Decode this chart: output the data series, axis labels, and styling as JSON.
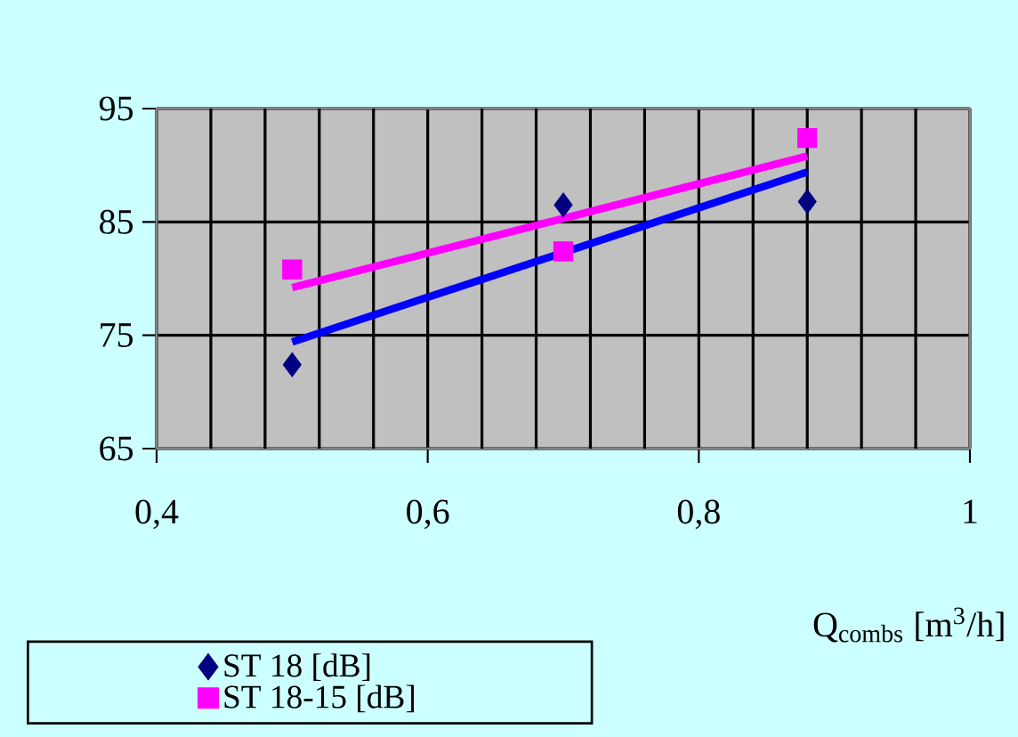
{
  "chart_data": {
    "type": "scatter",
    "xlabel": "Q$_{combs}$ [m$^{3}$/h]",
    "xlim": [
      0.4,
      1
    ],
    "ylim": [
      65,
      95
    ],
    "xticks": [
      {
        "value": 0.4,
        "label": "0,4"
      },
      {
        "value": 0.44,
        "label": null
      },
      {
        "value": 0.48,
        "label": null
      },
      {
        "value": 0.52,
        "label": null
      },
      {
        "value": 0.56,
        "label": null
      },
      {
        "value": 0.6,
        "label": "0,6"
      },
      {
        "value": 0.64,
        "label": null
      },
      {
        "value": 0.68,
        "label": null
      },
      {
        "value": 0.72,
        "label": null
      },
      {
        "value": 0.76,
        "label": null
      },
      {
        "value": 0.8,
        "label": "0,8"
      },
      {
        "value": 0.84,
        "label": null
      },
      {
        "value": 0.88,
        "label": null
      },
      {
        "value": 0.92,
        "label": null
      },
      {
        "value": 0.96,
        "label": null
      },
      1
    ],
    "yticks": [
      65,
      75,
      85,
      95
    ],
    "grid": true,
    "legend": "bottom left",
    "series": [
      {
        "name": "ST 18 [dB]",
        "marker": "diamond",
        "color": "#000080",
        "x": [
          0.5,
          0.7,
          0.88
        ],
        "values": [
          72.4,
          86.5,
          86.8
        ]
      },
      {
        "name": "ST 18-15 [dB]",
        "marker": "square",
        "color": "#ff00ff",
        "x": [
          0.5,
          0.7,
          0.88
        ],
        "values": [
          80.8,
          82.4,
          92.4
        ]
      },
      {
        "type": "line",
        "marker": "none",
        "line_style": "solid",
        "color": "#0000ff",
        "x": [
          0.5,
          0.88
        ],
        "values": [
          74.4,
          89.4
        ]
      },
      {
        "type": "line",
        "marker": "none",
        "line_style": "solid",
        "color": "#ff00ff",
        "x": [
          0.5,
          0.88
        ],
        "values": [
          79.2,
          90.8
        ]
      }
    ]
  }
}
